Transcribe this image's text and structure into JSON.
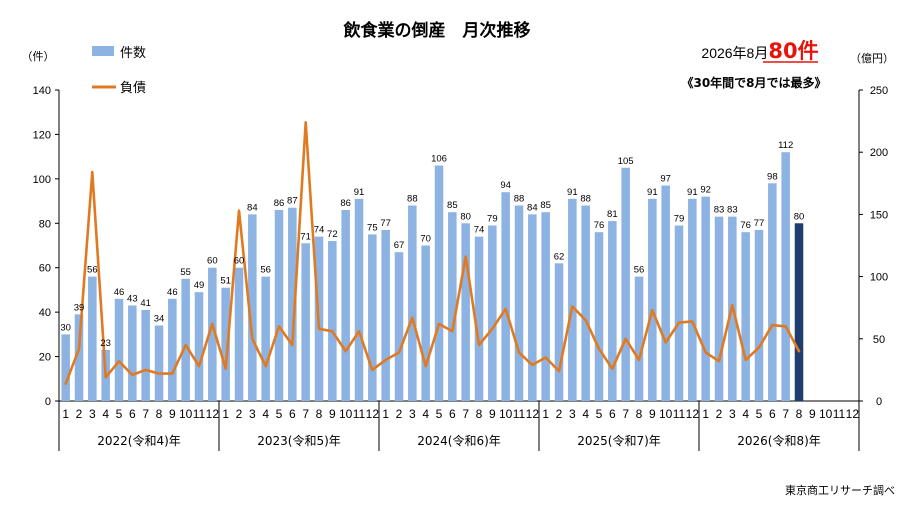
{
  "title": "飲食業の倒産　月次推移",
  "annotation": {
    "prefix": "2026年8月",
    "highlight": "80件",
    "subtitle": "《30年間で8月では最多》",
    "highlight_color": "#e8140c"
  },
  "source": "東京商工リサーチ調べ",
  "colors": {
    "bar": "#8db3e2",
    "bar_highlight": "#1f3d6e",
    "line": "#e07a22",
    "axis": "#000000",
    "grid": "#d0d0d0"
  },
  "chart_data": {
    "type": "bar",
    "title": "飲食業の倒産　月次推移",
    "left_axis": {
      "unit": "（件）",
      "ylim": [
        0,
        140
      ],
      "ticks": [
        0,
        20,
        40,
        60,
        80,
        100,
        120,
        140
      ]
    },
    "right_axis": {
      "unit": "（億円）",
      "ylim": [
        0,
        250
      ],
      "ticks": [
        0,
        50,
        100,
        150,
        200,
        250
      ]
    },
    "grid": false,
    "legend_position": "top-left",
    "month_labels": [
      "1",
      "2",
      "3",
      "4",
      "5",
      "6",
      "7",
      "8",
      "9",
      "10",
      "11",
      "12"
    ],
    "years": [
      "2022(令和4)年",
      "2023(令和5)年",
      "2024(令和6)年",
      "2025(令和7)年",
      "2026(令和8)年"
    ],
    "series": [
      {
        "name": "件数",
        "type": "bar",
        "axis": "left",
        "values": [
          30,
          39,
          56,
          23,
          46,
          43,
          41,
          34,
          46,
          55,
          49,
          60,
          51,
          60,
          84,
          56,
          86,
          87,
          71,
          74,
          72,
          86,
          91,
          75,
          77,
          67,
          88,
          70,
          106,
          85,
          80,
          74,
          79,
          94,
          88,
          84,
          85,
          62,
          91,
          88,
          76,
          81,
          105,
          56,
          91,
          97,
          79,
          91,
          92,
          83,
          83,
          76,
          77,
          98,
          112,
          80,
          null,
          null,
          null,
          null
        ],
        "highlight_index": 55
      },
      {
        "name": "負債",
        "type": "line",
        "axis": "right",
        "values": [
          14,
          42,
          184,
          19,
          32,
          21,
          25,
          22,
          22,
          45,
          28,
          62,
          26,
          153,
          50,
          28,
          60,
          45,
          224,
          58,
          56,
          40,
          56,
          25,
          33,
          39,
          67,
          28,
          62,
          56,
          116,
          45,
          58,
          74,
          39,
          29,
          35,
          24,
          76,
          65,
          42,
          26,
          50,
          33,
          73,
          47,
          63,
          64,
          39,
          32,
          77,
          33,
          43,
          61,
          60,
          40,
          null,
          null,
          null,
          null
        ]
      }
    ]
  }
}
